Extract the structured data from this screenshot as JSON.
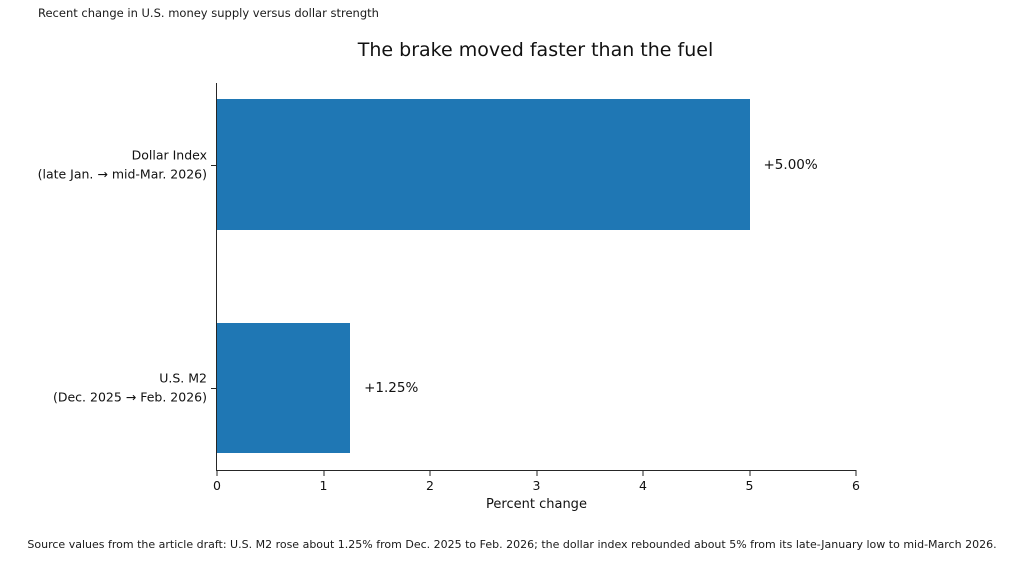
{
  "suptitle": "Recent change in U.S. money supply versus dollar strength",
  "caption": "Source values from the article draft: U.S. M2 rose about 1.25% from Dec. 2025 to Feb. 2026; the dollar index rebounded about 5% from its late-January low to mid-March 2026.",
  "chart_data": {
    "type": "bar",
    "orientation": "horizontal",
    "title": "The brake moved faster than the fuel",
    "xlabel": "Percent change",
    "xlim": [
      0,
      6
    ],
    "xticks": [
      "0",
      "1",
      "2",
      "3",
      "4",
      "5",
      "6"
    ],
    "grid": false,
    "bar_color": "#1f77b4",
    "categories": [
      "Dollar Index (late Jan. → mid-Mar. 2026)",
      "U.S. M2 (Dec. 2025 → Feb. 2026)"
    ],
    "values": [
      5.0,
      1.25
    ],
    "bars": [
      {
        "category": "Dollar Index (late Jan. → mid-Mar. 2026)",
        "label_lines": [
          "Dollar Index",
          "(late Jan. → mid-Mar. 2026)"
        ],
        "value": 5.0,
        "value_label": "+5.00%"
      },
      {
        "category": "U.S. M2 (Dec. 2025 → Feb. 2026)",
        "label_lines": [
          "U.S. M2",
          "(Dec. 2025 → Feb. 2026)"
        ],
        "value": 1.25,
        "value_label": "+1.25%"
      }
    ]
  }
}
